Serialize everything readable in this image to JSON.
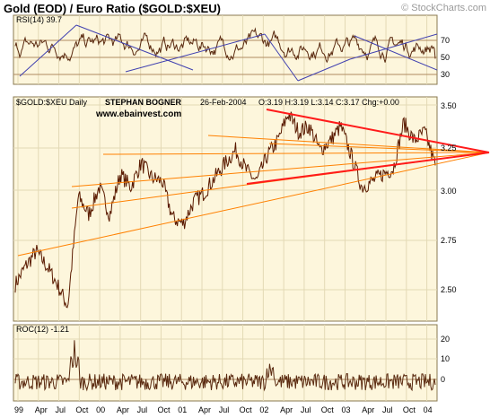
{
  "header": {
    "title": "Gold (EOD) / Euro Ratio ($GOLD:$XEU)",
    "copyright": "© StockCharts.com"
  },
  "colors": {
    "panel_bg": "#fdf6dc",
    "grid": "#e3d9b5",
    "price_line": "#5a1a00",
    "indicator_line": "#5a2a10",
    "trend_blue": "#4040b0",
    "trend_red": "#ff1a1a",
    "trend_orange": "#ff8000"
  },
  "rsi_panel": {
    "label": "RSI(14) 39.7",
    "levels": [
      "70",
      "50",
      "30"
    ]
  },
  "price_panel": {
    "symbol": "$GOLD:$XEU Daily",
    "author": "STEPHAN BOGNER",
    "date": "26-Feb-2004",
    "ohlc": "O:3.19 H:3.19 L:3.14 C:3.17 Chg:+0.00",
    "website": "www.ebainvest.com",
    "y_ticks": [
      "3.50",
      "3.25",
      "3.00",
      "2.75",
      "2.50"
    ]
  },
  "roc_panel": {
    "label": "ROC(12) -1.21",
    "y_ticks": [
      "20",
      "10",
      "0"
    ]
  },
  "x_axis": {
    "labels": [
      "99",
      "Apr",
      "Jul",
      "Oct",
      "00",
      "Apr",
      "Jul",
      "Oct",
      "01",
      "Apr",
      "Jul",
      "Oct",
      "02",
      "Apr",
      "Jul",
      "Oct",
      "03",
      "Apr",
      "Jul",
      "Oct",
      "04"
    ]
  },
  "chart_data": [
    {
      "type": "line",
      "name": "RSI(14)",
      "ylim": [
        10,
        90
      ],
      "last_value": 39.7,
      "reference_levels": [
        70,
        50,
        30
      ]
    },
    {
      "type": "line",
      "name": "$GOLD:$XEU",
      "ylim": [
        2.32,
        3.54
      ],
      "x": [
        "1999-01",
        "1999-03",
        "1999-05",
        "1999-07",
        "1999-08",
        "1999-09",
        "1999-10",
        "1999-11",
        "1999-12",
        "2000-01",
        "2000-03",
        "2000-05",
        "2000-07",
        "2000-09",
        "2000-11",
        "2001-01",
        "2001-02",
        "2001-04",
        "2001-05",
        "2001-07",
        "2001-09",
        "2001-10",
        "2001-12",
        "2002-01",
        "2002-03",
        "2002-05",
        "2002-06",
        "2002-07",
        "2002-09",
        "2002-11",
        "2003-01",
        "2003-02",
        "2003-04",
        "2003-05",
        "2003-07",
        "2003-08",
        "2003-09",
        "2003-11",
        "2003-12",
        "2004-01",
        "2004-02"
      ],
      "values": [
        2.52,
        2.62,
        2.7,
        2.62,
        2.52,
        2.4,
        3.0,
        2.9,
        3.05,
        2.9,
        3.12,
        3.05,
        3.18,
        3.1,
        3.08,
        2.88,
        2.85,
        2.97,
        3.02,
        3.1,
        3.18,
        3.25,
        3.14,
        3.08,
        3.22,
        3.3,
        3.45,
        3.35,
        3.38,
        3.25,
        3.3,
        3.38,
        3.22,
        3.05,
        3.08,
        3.12,
        3.15,
        3.4,
        3.3,
        3.35,
        3.17
      ],
      "trendlines": [
        {
          "color": "red",
          "from": [
            "2002-05",
            3.48
          ],
          "to": [
            "2004-02",
            3.23
          ]
        },
        {
          "color": "red",
          "from": [
            "2002-01",
            3.06
          ],
          "to": [
            "2004-02",
            3.18
          ]
        },
        {
          "color": "orange",
          "from": [
            "1999-01",
            2.7
          ],
          "to": [
            "2004-02",
            3.15
          ]
        }
      ]
    },
    {
      "type": "line",
      "name": "ROC(12)",
      "ylim": [
        -8,
        24
      ],
      "last_value": -1.21
    }
  ]
}
